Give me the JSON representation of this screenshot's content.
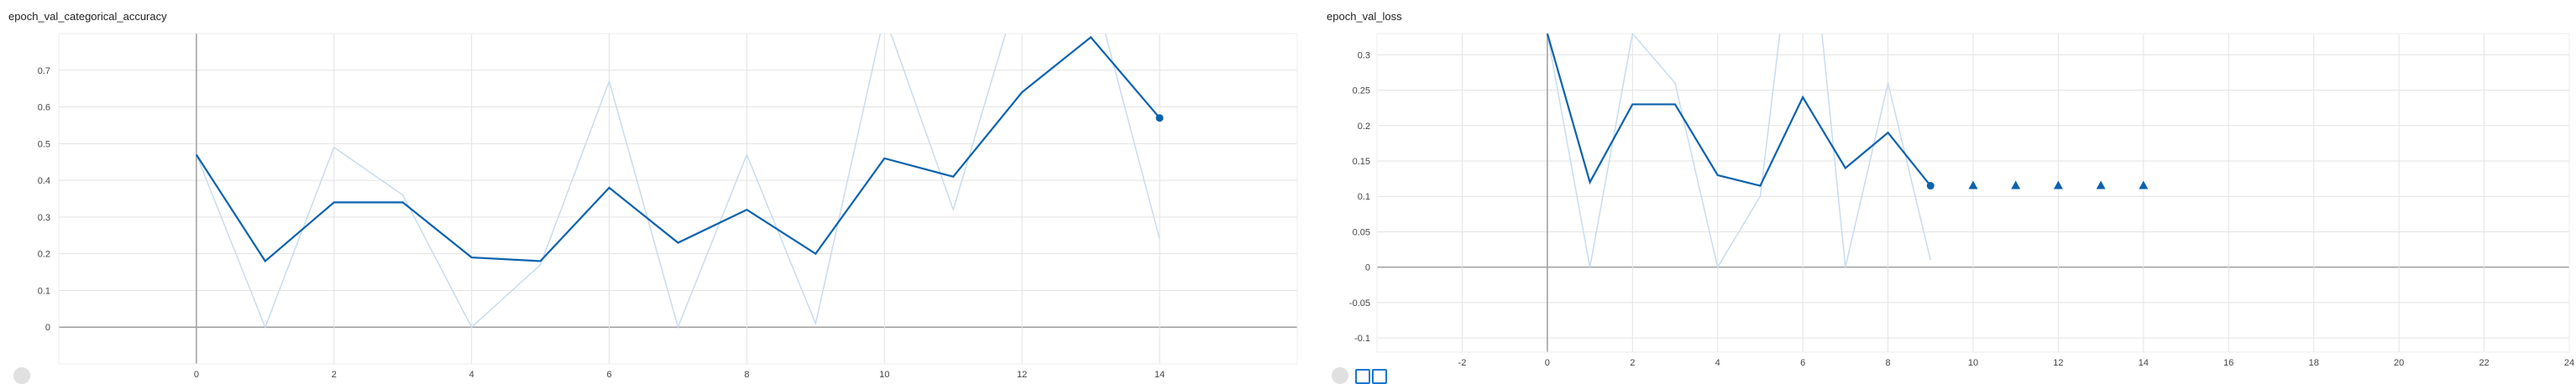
{
  "charts": [
    {
      "title": "epoch_val_categorical_accuracy",
      "x_ticks": [
        0,
        2,
        4,
        6,
        8,
        10,
        12,
        14
      ],
      "y_ticks": [
        0,
        0.1,
        0.2,
        0.3,
        0.4,
        0.5,
        0.6,
        0.7
      ]
    },
    {
      "title": "epoch_val_loss",
      "x_ticks": [
        -2,
        0,
        2,
        4,
        6,
        8,
        10,
        12,
        14,
        16,
        18,
        20,
        22,
        24
      ],
      "y_ticks": [
        -0.1,
        -0.05,
        0,
        0.05,
        0.1,
        0.15,
        0.2,
        0.25,
        0.3
      ]
    }
  ],
  "chart_data": [
    {
      "type": "line",
      "title": "epoch_val_categorical_accuracy",
      "xlim": [
        -2,
        16
      ],
      "ylim": [
        -0.1,
        0.8
      ],
      "grid": true,
      "color_smoothed": "#0b62ad",
      "color_raw": "#c8dcef",
      "series": [
        {
          "x": [
            0,
            1,
            2,
            3,
            4,
            5,
            6,
            7,
            8,
            9,
            10,
            11,
            12,
            13,
            14
          ],
          "values": [
            0.47,
            0.18,
            0.34,
            0.34,
            0.19,
            0.18,
            0.38,
            0.23,
            0.32,
            0.2,
            0.46,
            0.41,
            0.64,
            0.79,
            0.57
          ]
        },
        {
          "x": [
            0,
            1,
            2,
            3,
            4,
            5,
            6,
            7,
            8,
            9,
            10,
            11,
            12,
            13,
            14
          ],
          "values": [
            0.47,
            0.0,
            0.49,
            0.36,
            0.0,
            0.17,
            0.67,
            0.0,
            0.47,
            0.01,
            0.85,
            0.32,
            0.95,
            0.95,
            0.24
          ]
        }
      ]
    },
    {
      "type": "line",
      "title": "epoch_val_loss",
      "xlim": [
        -4,
        24
      ],
      "ylim": [
        -0.12,
        0.33
      ],
      "grid": true,
      "color_smoothed": "#0b62ad",
      "color_raw": "#c8dcef",
      "series": [
        {
          "x": [
            0,
            1,
            2,
            3,
            4,
            5,
            6,
            7,
            8,
            9
          ],
          "values": [
            0.33,
            0.12,
            0.23,
            0.23,
            0.13,
            0.115,
            0.24,
            0.14,
            0.19,
            0.115
          ]
        },
        {
          "x": [
            0,
            1,
            2,
            3,
            4,
            5,
            6,
            7,
            8,
            9
          ],
          "values": [
            0.33,
            0.0,
            0.33,
            0.26,
            0.0,
            0.1,
            0.6,
            0.0,
            0.26,
            0.01
          ]
        },
        {
          "x": [
            10,
            11,
            12,
            13,
            14
          ],
          "values": [
            0.115,
            0.115,
            0.115,
            0.115,
            0.115
          ],
          "marker": "triangle"
        }
      ]
    }
  ]
}
